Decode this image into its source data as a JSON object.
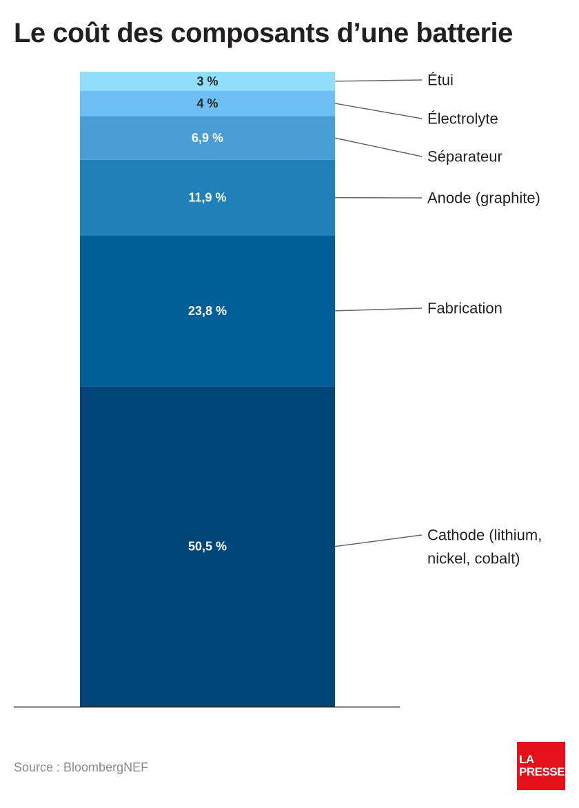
{
  "title": "Le coût des composants d’une batterie",
  "source": "Source : BloombergNEF",
  "logo": {
    "line1": "LA",
    "line2": "PRESSE"
  },
  "chart_data": {
    "type": "bar",
    "stacked": true,
    "title": "Le coût des composants d’une batterie",
    "categories": [
      "Cathode (lithium, nickel, cobalt)",
      "Fabrication",
      "Anode (graphite)",
      "Séparateur",
      "Électrolyte",
      "Étui"
    ],
    "values": [
      50.5,
      23.8,
      11.9,
      6.9,
      4,
      3
    ],
    "value_labels": [
      "50,5 %",
      "23,8 %",
      "11,9 %",
      "6,9 %",
      "4 %",
      "3 %"
    ],
    "label_lines": [
      [
        "Cathode (lithium,",
        "nickel, cobalt)"
      ],
      [
        "Fabrication"
      ],
      [
        "Anode (graphite)"
      ],
      [
        "Séparateur"
      ],
      [
        "Électrolyte"
      ],
      [
        "Étui"
      ]
    ],
    "colors": [
      "#00467a",
      "#005f97",
      "#2080b8",
      "#4a9ed6",
      "#6ebff5",
      "#90def9"
    ],
    "value_label_colors": [
      "#ffffff",
      "#ffffff",
      "#ffffff",
      "#ffffff",
      "#2b2b2b",
      "#2b2b2b"
    ],
    "unit": "%"
  }
}
